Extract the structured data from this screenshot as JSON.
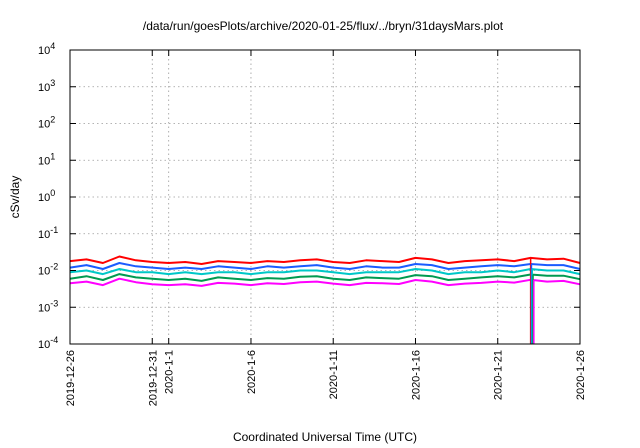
{
  "chart_data": {
    "type": "line",
    "title": "/data/run/goesPlots/archive/2020-01-25/flux/../bryn/31daysMars.plot",
    "xlabel": "Coordinated Universal Time (UTC)",
    "ylabel": "cSv/day",
    "yscale": "log",
    "ylim": [
      0.0001,
      10000
    ],
    "xlim": [
      "2019-12-26",
      "2020-01-26"
    ],
    "x_ticks": [
      "2019-12-26",
      "2019-12-31",
      "2020-1-1",
      "2020-1-6",
      "2020-1-11",
      "2020-1-16",
      "2020-1-21",
      "2020-1-26"
    ],
    "y_ticks": [
      {
        "mant": "10",
        "exp": "-4"
      },
      {
        "mant": "10",
        "exp": "-3"
      },
      {
        "mant": "10",
        "exp": "-2"
      },
      {
        "mant": "10",
        "exp": "-1"
      },
      {
        "mant": "10",
        "exp": "0"
      },
      {
        "mant": "10",
        "exp": "1"
      },
      {
        "mant": "10",
        "exp": "2"
      },
      {
        "mant": "10",
        "exp": "3"
      },
      {
        "mant": "10",
        "exp": "4"
      }
    ],
    "grid": true,
    "x": [
      "2019-12-26",
      "2019-12-27",
      "2019-12-28",
      "2019-12-29",
      "2019-12-30",
      "2019-12-31",
      "2020-01-01",
      "2020-01-02",
      "2020-01-03",
      "2020-01-04",
      "2020-01-05",
      "2020-01-06",
      "2020-01-07",
      "2020-01-08",
      "2020-01-09",
      "2020-01-10",
      "2020-01-11",
      "2020-01-12",
      "2020-01-13",
      "2020-01-14",
      "2020-01-15",
      "2020-01-16",
      "2020-01-17",
      "2020-01-18",
      "2020-01-19",
      "2020-01-20",
      "2020-01-21",
      "2020-01-22",
      "2020-01-23",
      "2020-01-24",
      "2020-01-25",
      "2020-01-26"
    ],
    "series": [
      {
        "color": "#ff0000",
        "values": [
          0.018,
          0.02,
          0.016,
          0.024,
          0.019,
          0.017,
          0.016,
          0.017,
          0.015,
          0.018,
          0.017,
          0.016,
          0.018,
          0.017,
          0.019,
          0.02,
          0.017,
          0.016,
          0.019,
          0.018,
          0.017,
          0.022,
          0.02,
          0.016,
          0.018,
          0.019,
          0.02,
          0.018,
          0.022,
          0.02,
          0.021,
          0.016
        ]
      },
      {
        "color": "#1a5cff",
        "values": [
          0.012,
          0.014,
          0.011,
          0.016,
          0.013,
          0.012,
          0.011,
          0.012,
          0.011,
          0.013,
          0.012,
          0.011,
          0.013,
          0.012,
          0.013,
          0.014,
          0.012,
          0.011,
          0.013,
          0.012,
          0.012,
          0.015,
          0.014,
          0.011,
          0.012,
          0.013,
          0.014,
          0.013,
          0.015,
          0.014,
          0.014,
          0.011
        ]
      },
      {
        "color": "#00c8c8",
        "values": [
          0.009,
          0.01,
          0.008,
          0.011,
          0.009,
          0.009,
          0.008,
          0.009,
          0.008,
          0.009,
          0.009,
          0.008,
          0.009,
          0.009,
          0.01,
          0.01,
          0.009,
          0.008,
          0.009,
          0.009,
          0.009,
          0.011,
          0.01,
          0.008,
          0.009,
          0.009,
          0.01,
          0.009,
          0.011,
          0.01,
          0.01,
          0.008
        ]
      },
      {
        "color": "#009a50",
        "values": [
          0.006,
          0.007,
          0.0055,
          0.008,
          0.0065,
          0.006,
          0.0055,
          0.006,
          0.0052,
          0.0065,
          0.006,
          0.0055,
          0.0062,
          0.006,
          0.0068,
          0.007,
          0.006,
          0.0055,
          0.0065,
          0.0062,
          0.006,
          0.0075,
          0.007,
          0.0055,
          0.006,
          0.0065,
          0.007,
          0.0065,
          0.0078,
          0.0072,
          0.0072,
          0.0058
        ]
      },
      {
        "color": "#ff00ff",
        "values": [
          0.0045,
          0.005,
          0.004,
          0.006,
          0.0048,
          0.0042,
          0.004,
          0.0042,
          0.0038,
          0.0046,
          0.0044,
          0.004,
          0.0045,
          0.0043,
          0.0048,
          0.005,
          0.0044,
          0.004,
          0.0046,
          0.0045,
          0.0043,
          0.0055,
          0.005,
          0.004,
          0.0044,
          0.0046,
          0.005,
          0.0047,
          0.0056,
          0.005,
          0.0052,
          0.0042
        ]
      }
    ],
    "dropout": {
      "x": "2020-01-23",
      "value": 0.0001
    }
  }
}
